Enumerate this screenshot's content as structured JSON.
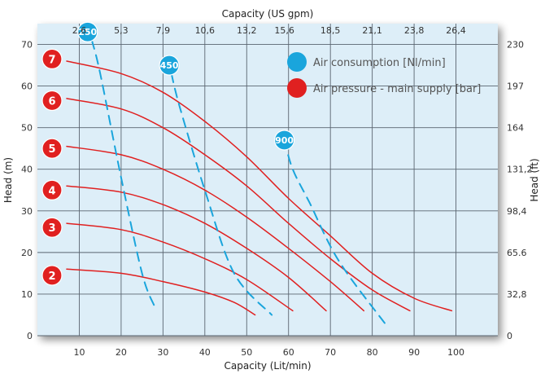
{
  "chart_data": {
    "type": "line",
    "xlabel_bottom": "Capacity (Lit/min)",
    "xlabel_top": "Capacity (US gpm)",
    "ylabel_left": "Head (m)",
    "ylabel_right": "Head (ft)",
    "xlim": [
      0,
      110
    ],
    "ylim": [
      0,
      75
    ],
    "x_ticks": [
      "10",
      "20",
      "30",
      "40",
      "50",
      "60",
      "70",
      "80",
      "90",
      "100"
    ],
    "x_tick_values": [
      10,
      20,
      30,
      40,
      50,
      60,
      70,
      80,
      90,
      100
    ],
    "x_top_ticks": [
      "2,6",
      "5,3",
      "7,9",
      "10,6",
      "13,2",
      "15,6",
      "18,5",
      "21,1",
      "23,8",
      "26,4"
    ],
    "x_top_tick_values": [
      10,
      20,
      30,
      40,
      50,
      59,
      70,
      80,
      90,
      100
    ],
    "y_ticks": [
      "0",
      "10",
      "20",
      "30",
      "40",
      "50",
      "60",
      "70"
    ],
    "y_tick_values": [
      0,
      10,
      20,
      30,
      40,
      50,
      60,
      70
    ],
    "y_right_ticks": [
      "0",
      "32,8",
      "65.6",
      "98,4",
      "131,2",
      "164",
      "197",
      "230"
    ],
    "y_right_tick_values": [
      0,
      10,
      20,
      30,
      40,
      50,
      60,
      70
    ],
    "grid": true,
    "legend": [
      {
        "label": "Air consumption   [Nl/min]",
        "color": "#1aa5dc"
      },
      {
        "label": "Air pressure  - main supply   [bar]",
        "color": "#e02020"
      }
    ],
    "series": [
      {
        "name": "7",
        "group": "pressure",
        "x": [
          7,
          20,
          30,
          40,
          50,
          60,
          70,
          80,
          90,
          99
        ],
        "y": [
          66,
          63,
          58.5,
          51.5,
          43,
          33,
          24,
          15,
          9,
          6
        ]
      },
      {
        "name": "6",
        "group": "pressure",
        "x": [
          7,
          20,
          30,
          40,
          50,
          60,
          70,
          80,
          89
        ],
        "y": [
          57,
          54.5,
          50,
          43.5,
          36,
          27,
          18.5,
          11,
          6
        ]
      },
      {
        "name": "5",
        "group": "pressure",
        "x": [
          7,
          20,
          30,
          40,
          50,
          60,
          70,
          78
        ],
        "y": [
          45.5,
          43.5,
          40,
          35,
          28.5,
          21,
          13,
          6
        ]
      },
      {
        "name": "4",
        "group": "pressure",
        "x": [
          7,
          20,
          30,
          40,
          50,
          60,
          69
        ],
        "y": [
          36,
          34.5,
          31.5,
          27,
          21,
          14,
          6
        ]
      },
      {
        "name": "3",
        "group": "pressure",
        "x": [
          7,
          20,
          30,
          40,
          50,
          61
        ],
        "y": [
          27,
          25.5,
          22.5,
          18.5,
          13.5,
          6
        ]
      },
      {
        "name": "2",
        "group": "pressure",
        "x": [
          7,
          20,
          30,
          40,
          47,
          52
        ],
        "y": [
          16,
          15,
          13,
          10.5,
          8,
          5
        ]
      },
      {
        "name": "250",
        "group": "air",
        "x": [
          13,
          15,
          20,
          25,
          28
        ],
        "y": [
          71,
          63,
          38,
          15,
          7
        ]
      },
      {
        "name": "450",
        "group": "air",
        "x": [
          32,
          34,
          40,
          47,
          56
        ],
        "y": [
          63,
          55,
          35,
          15,
          5
        ]
      },
      {
        "name": "900",
        "group": "air",
        "x": [
          59,
          61,
          65,
          72,
          83
        ],
        "y": [
          47,
          40,
          32,
          18,
          3
        ]
      }
    ],
    "badges": [
      {
        "label": "7",
        "color": "#e02020",
        "x": 3.5,
        "y": 66.5
      },
      {
        "label": "6",
        "color": "#e02020",
        "x": 3.5,
        "y": 56.5
      },
      {
        "label": "5",
        "color": "#e02020",
        "x": 3.5,
        "y": 45
      },
      {
        "label": "4",
        "color": "#e02020",
        "x": 3.5,
        "y": 35
      },
      {
        "label": "3",
        "color": "#e02020",
        "x": 3.5,
        "y": 26
      },
      {
        "label": "2",
        "color": "#e02020",
        "x": 3.5,
        "y": 14.5
      },
      {
        "label": "250",
        "color": "#1aa5dc",
        "x": 12,
        "y": 73
      },
      {
        "label": "450",
        "color": "#1aa5dc",
        "x": 31.5,
        "y": 65
      },
      {
        "label": "900",
        "color": "#1aa5dc",
        "x": 59,
        "y": 47
      }
    ]
  }
}
